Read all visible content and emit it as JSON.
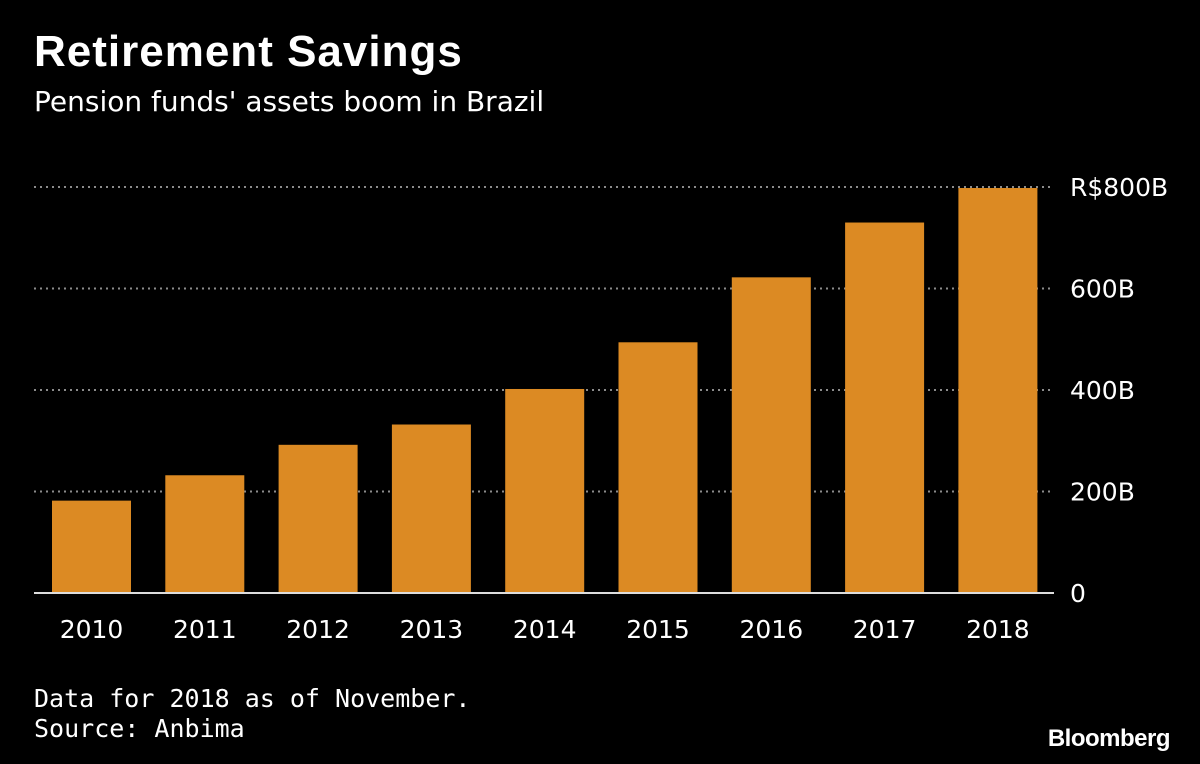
{
  "header": {
    "title": "Retirement Savings",
    "subtitle": "Pension funds' assets boom in Brazil"
  },
  "footer": {
    "note": "Data for 2018 as of November.",
    "source": "Source: Anbima",
    "brand": "Bloomberg"
  },
  "colors": {
    "background": "#000000",
    "bar": "#dc8a23",
    "text": "#ffffff",
    "grid": "#8c8c8c"
  },
  "chart_data": {
    "type": "bar",
    "title": "Retirement Savings",
    "subtitle": "Pension funds' assets boom in Brazil",
    "xlabel": "",
    "ylabel": "",
    "categories": [
      "2010",
      "2011",
      "2012",
      "2013",
      "2014",
      "2015",
      "2016",
      "2017",
      "2018"
    ],
    "values": [
      182,
      232,
      292,
      332,
      402,
      494,
      622,
      730,
      798
    ],
    "ylim": [
      0,
      800
    ],
    "yticks": [
      0,
      200,
      400,
      600,
      800
    ],
    "ytick_labels": [
      "0",
      "200B",
      "400B",
      "600B",
      "R$800B"
    ],
    "y_axis_side": "right",
    "grid": true,
    "grid_style": "dotted"
  }
}
